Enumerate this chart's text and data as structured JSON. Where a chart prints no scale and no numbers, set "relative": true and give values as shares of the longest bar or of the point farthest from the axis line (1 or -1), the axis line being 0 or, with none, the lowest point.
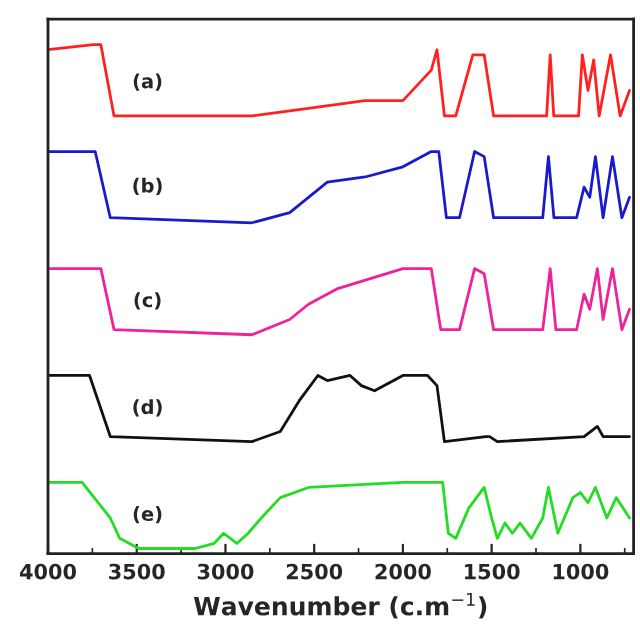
{
  "chart_data": {
    "type": "line",
    "relative": true,
    "xlabel": "Wavenumber (c.m$^{−1}$)",
    "xlim": [
      4000,
      700
    ],
    "xticks": [
      4000,
      3500,
      3000,
      2500,
      2000,
      1500,
      1000
    ],
    "tick_labels": "x",
    "grid": false,
    "legend": false,
    "marker": "none",
    "line_style": "solid",
    "series": [
      {
        "name": "(a)",
        "color": "#ff2020",
        "x": [
          4000,
          3745,
          3702,
          3628,
          2851,
          2638,
          2213,
          2000,
          1840,
          1808,
          1766,
          1702,
          1606,
          1542,
          1489,
          1234,
          1190,
          1170,
          1150,
          1010,
          989,
          957,
          925,
          894,
          830,
          776,
          723
        ],
        "values": [
          0.99,
          1.0,
          1.0,
          0.86,
          0.86,
          0.87,
          0.89,
          0.89,
          0.95,
          0.99,
          0.86,
          0.86,
          0.98,
          0.98,
          0.86,
          0.86,
          0.86,
          0.98,
          0.86,
          0.86,
          0.98,
          0.91,
          0.97,
          0.86,
          0.98,
          0.86,
          0.91
        ]
      },
      {
        "name": "(b)",
        "color": "#1a1acc",
        "x": [
          4000,
          3734,
          3649,
          2851,
          2638,
          2532,
          2426,
          2213,
          2000,
          1840,
          1798,
          1755,
          1681,
          1596,
          1542,
          1489,
          1212,
          1180,
          1149,
          1021,
          979,
          947,
          915,
          872,
          819,
          766,
          723
        ],
        "values": [
          0.79,
          0.79,
          0.66,
          0.65,
          0.67,
          0.7,
          0.73,
          0.74,
          0.76,
          0.79,
          0.79,
          0.66,
          0.66,
          0.79,
          0.78,
          0.66,
          0.66,
          0.78,
          0.66,
          0.66,
          0.72,
          0.7,
          0.78,
          0.66,
          0.78,
          0.66,
          0.7
        ]
      },
      {
        "name": "(c)",
        "color": "#ee2299",
        "x": [
          4000,
          3702,
          3628,
          2851,
          2638,
          2532,
          2372,
          2000,
          1840,
          1787,
          1681,
          1596,
          1542,
          1489,
          1212,
          1170,
          1138,
          1021,
          979,
          947,
          904,
          872,
          819,
          766,
          723
        ],
        "values": [
          0.56,
          0.56,
          0.44,
          0.43,
          0.46,
          0.49,
          0.52,
          0.56,
          0.56,
          0.44,
          0.44,
          0.56,
          0.55,
          0.44,
          0.44,
          0.56,
          0.44,
          0.44,
          0.51,
          0.48,
          0.56,
          0.46,
          0.56,
          0.44,
          0.48
        ]
      },
      {
        "name": "(d)",
        "color": "#111111",
        "x": [
          4000,
          3766,
          3649,
          2851,
          2691,
          2585,
          2479,
          2426,
          2298,
          2234,
          2160,
          2000,
          1861,
          1808,
          1766,
          1532,
          1511,
          1468,
          979,
          904,
          872,
          723
        ],
        "values": [
          0.35,
          0.35,
          0.23,
          0.22,
          0.24,
          0.3,
          0.35,
          0.34,
          0.35,
          0.33,
          0.32,
          0.35,
          0.35,
          0.33,
          0.22,
          0.23,
          0.23,
          0.22,
          0.23,
          0.25,
          0.23,
          0.23
        ]
      },
      {
        "name": "(e)",
        "color": "#22dd22",
        "x": [
          4000,
          3808,
          3649,
          3596,
          3489,
          3170,
          3064,
          3010,
          2936,
          2872,
          2798,
          2691,
          2532,
          2000,
          1776,
          1744,
          1702,
          1628,
          1542,
          1500,
          1468,
          1425,
          1383,
          1340,
          1276,
          1212,
          1180,
          1127,
          1042,
          1000,
          957,
          915,
          851,
          798,
          723
        ],
        "values": [
          0.14,
          0.14,
          0.07,
          0.03,
          0.01,
          0.01,
          0.02,
          0.04,
          0.02,
          0.04,
          0.07,
          0.11,
          0.13,
          0.14,
          0.14,
          0.04,
          0.03,
          0.09,
          0.13,
          0.07,
          0.03,
          0.06,
          0.04,
          0.06,
          0.03,
          0.07,
          0.13,
          0.04,
          0.11,
          0.12,
          0.1,
          0.13,
          0.07,
          0.11,
          0.07
        ]
      }
    ]
  }
}
